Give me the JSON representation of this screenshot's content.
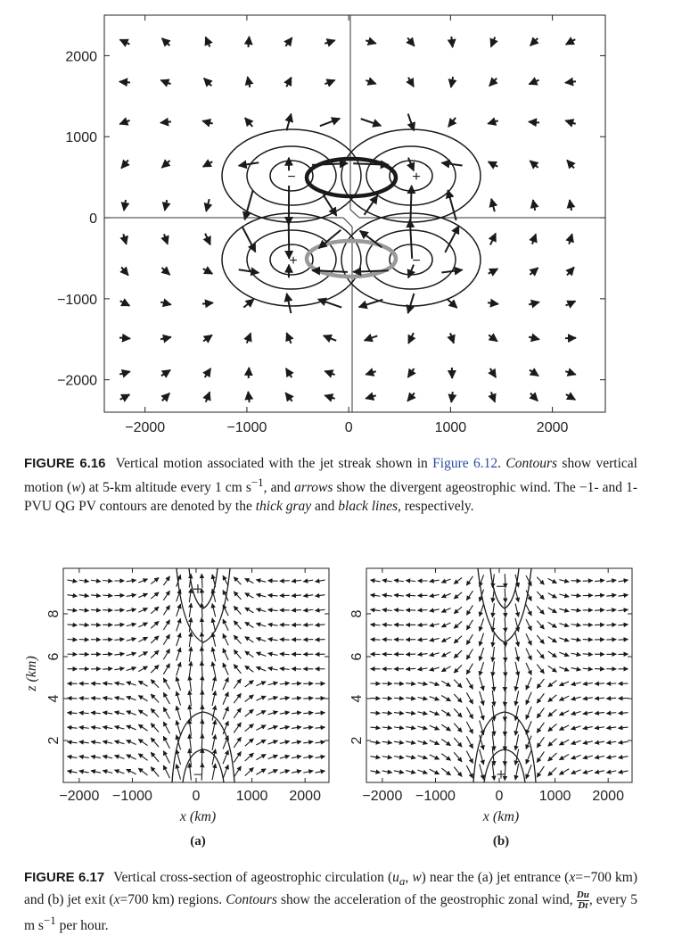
{
  "figure16": {
    "label": "FIGURE 6.16",
    "caption_parts": {
      "t1": "Vertical motion associated with the jet streak shown in ",
      "link": "Figure 6.12",
      "t2": ". ",
      "contours": "Contours",
      "t3": " show vertical motion (",
      "w": "w",
      "t4": ") at 5-km altitude every 1 cm s",
      "sup": "−1",
      "t5": ", and ",
      "arrows": "arrows",
      "t6": " show the divergent ageostrophic wind. The −1- and 1-PVU QG PV contours are denoted by the ",
      "thick": "thick gray",
      "t7": " and ",
      "black": "black lines",
      "t8": ", respectively."
    },
    "contour_signs": {
      "upper_left": "−",
      "upper_right": "+",
      "lower_left": "+",
      "lower_right": "−"
    }
  },
  "figure17": {
    "label": "FIGURE 6.17",
    "caption_parts": {
      "t1": "Vertical cross-section of ageostrophic circulation (",
      "ua": "u",
      "ua_sub": "a",
      "t2": ", ",
      "w": "w",
      "t3": ") near the (a) jet entrance (",
      "x1": "x",
      "t4": "=−700 km) and (b) jet exit (",
      "x2": "x",
      "t5": "=700 km) regions. ",
      "contours": "Contours",
      "t6": " show the acceleration of the geostrophic zonal wind, ",
      "frac_num": "Du",
      "frac_den": "Dt",
      "t7": ", every 5 m s",
      "sup": "−1",
      "t8": " per hour."
    },
    "panels": [
      {
        "label": "(a)",
        "top_sign": "+",
        "bottom_sign": "−"
      },
      {
        "label": "(b)",
        "top_sign": "−",
        "bottom_sign": "+"
      }
    ]
  },
  "chart_data": [
    {
      "type": "vector-field",
      "title": "",
      "xlabel": "",
      "ylabel": "",
      "x_ticks": [
        -2000,
        -1000,
        0,
        1000,
        2000
      ],
      "y_ticks": [
        2000,
        1000,
        0,
        -1000,
        -2000
      ],
      "xlim": [
        -2400,
        2520
      ],
      "ylim": [
        -2400,
        2500
      ],
      "contour_centers": [
        {
          "x": -600,
          "y": 500,
          "sign": "−"
        },
        {
          "x": 600,
          "y": 500,
          "sign": "+"
        },
        {
          "x": -600,
          "y": -500,
          "sign": "+"
        },
        {
          "x": 600,
          "y": -500,
          "sign": "−"
        }
      ],
      "pv_contours": [
        {
          "value": "1 PVU",
          "style": "thick black",
          "center": [
            0,
            550
          ]
        },
        {
          "value": "−1 PVU",
          "style": "thick gray",
          "center": [
            0,
            -500
          ]
        }
      ]
    },
    {
      "type": "vector-field",
      "title": "",
      "xlabel": "x (km)",
      "ylabel": "z (km)",
      "x_ticks": [
        "−2000",
        "−1000",
        "0",
        "1000",
        "2000"
      ],
      "y_ticks": [
        "8",
        "6",
        "4",
        "2"
      ],
      "panel": "(a)"
    },
    {
      "type": "vector-field",
      "title": "",
      "xlabel": "x (km)",
      "ylabel": "",
      "x_ticks": [
        "−2000",
        "−1000",
        "0",
        "1000",
        "2000"
      ],
      "y_ticks": [
        "8",
        "6",
        "4",
        "2"
      ],
      "panel": "(b)"
    }
  ]
}
